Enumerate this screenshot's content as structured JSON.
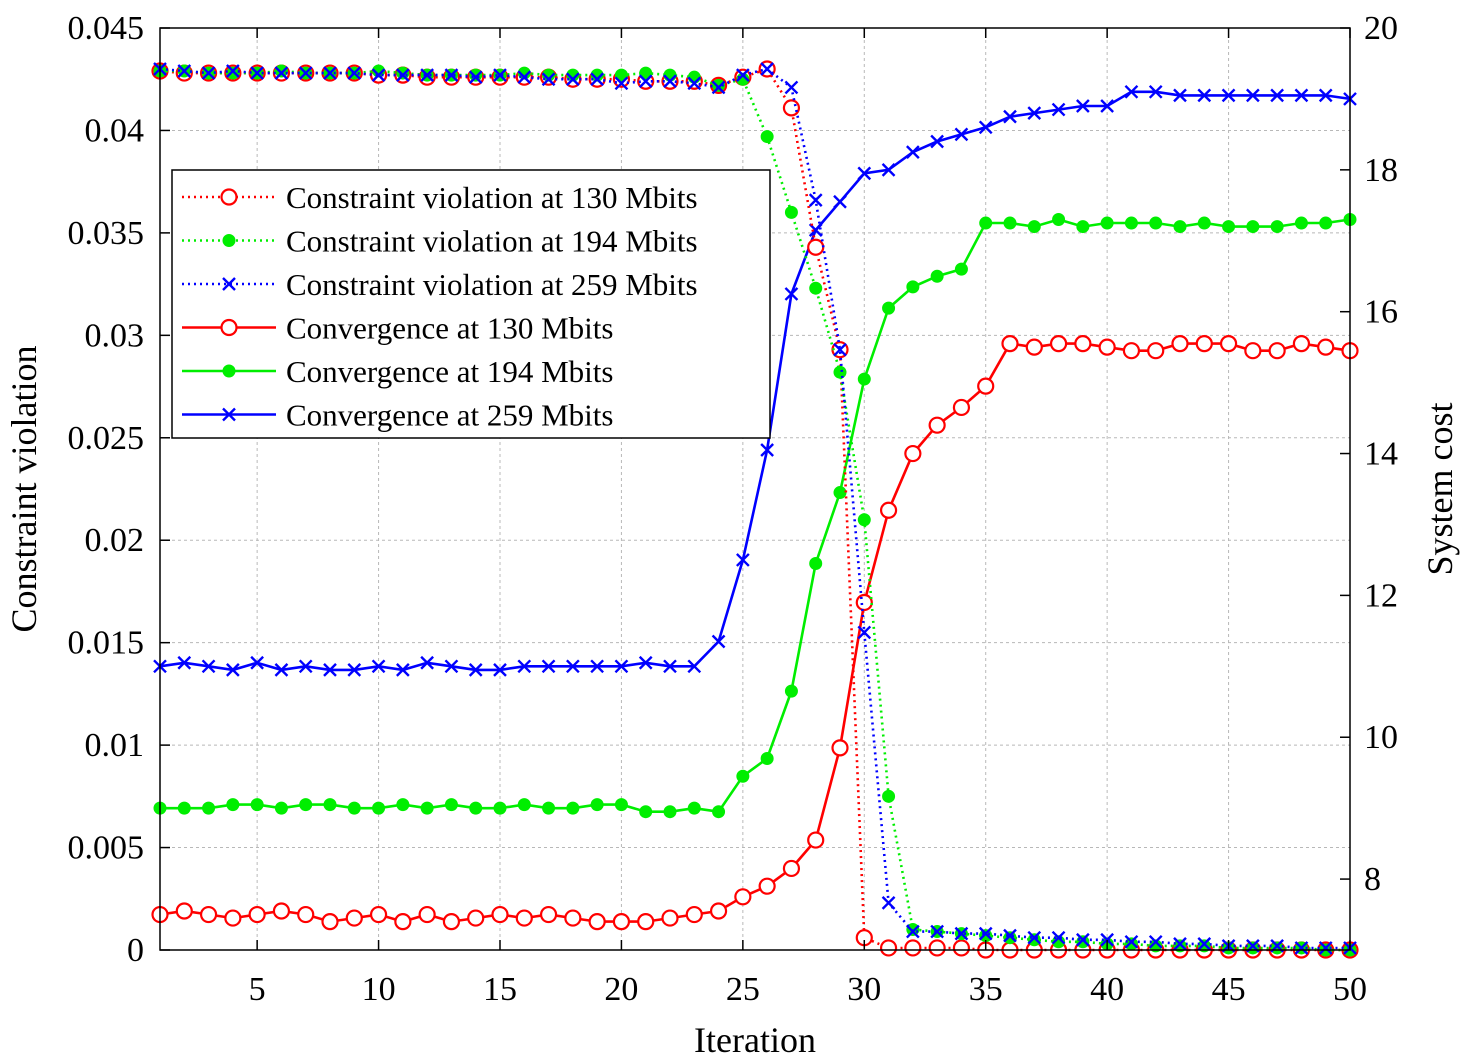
{
  "chart_data": {
    "type": "line",
    "xlabel": "Iteration",
    "ylabel_left": "Constraint violation",
    "ylabel_right": "System cost",
    "xlim": [
      1,
      50
    ],
    "ylim_left": [
      0,
      0.045
    ],
    "ylim_right": [
      7,
      20
    ],
    "x_ticks": [
      5,
      10,
      15,
      20,
      25,
      30,
      35,
      40,
      45,
      50
    ],
    "y_left_ticks": [
      0,
      0.005,
      0.01,
      0.015,
      0.02,
      0.025,
      0.03,
      0.035,
      0.04,
      0.045
    ],
    "y_left_tick_labels": [
      "0",
      "0.005",
      "0.01",
      "0.015",
      "0.02",
      "0.025",
      "0.03",
      "0.035",
      "0.04",
      "0.045"
    ],
    "y_right_ticks": [
      8,
      10,
      12,
      14,
      16,
      18,
      20
    ],
    "y_right_tick_labels": [
      "8",
      "10",
      "12",
      "14",
      "16",
      "18",
      "20"
    ],
    "grid": true,
    "legend_position": "upper-left",
    "x": [
      1,
      2,
      3,
      4,
      5,
      6,
      7,
      8,
      9,
      10,
      11,
      12,
      13,
      14,
      15,
      16,
      17,
      18,
      19,
      20,
      21,
      22,
      23,
      24,
      25,
      26,
      27,
      28,
      29,
      30,
      31,
      32,
      33,
      34,
      35,
      36,
      37,
      38,
      39,
      40,
      41,
      42,
      43,
      44,
      45,
      46,
      47,
      48,
      49,
      50
    ],
    "series": [
      {
        "name": "Constraint violation at 130 Mbits",
        "axis": "left",
        "color": "#ff0000",
        "line": "dotted",
        "marker": "circle",
        "values": [
          0.0429,
          0.0428,
          0.0428,
          0.0428,
          0.0428,
          0.0428,
          0.0428,
          0.0428,
          0.0428,
          0.0427,
          0.0427,
          0.0426,
          0.0426,
          0.0426,
          0.0426,
          0.0426,
          0.0426,
          0.0425,
          0.0425,
          0.0425,
          0.0424,
          0.0424,
          0.0424,
          0.0422,
          0.0426,
          0.043,
          0.0411,
          0.0343,
          0.0293,
          0.0006,
          0.0001,
          0.0001,
          0.0001,
          0.0001,
          0.0,
          0.0,
          0.0,
          0.0,
          0.0,
          0.0,
          0.0,
          0.0,
          0.0,
          0.0,
          0.0,
          0.0,
          0.0,
          0.0,
          0.0,
          0.0
        ]
      },
      {
        "name": "Constraint violation at 194 Mbits",
        "axis": "left",
        "color": "#00ee00",
        "line": "dotted",
        "marker": "filled-circle",
        "values": [
          0.0429,
          0.0429,
          0.0428,
          0.0428,
          0.0428,
          0.0429,
          0.0428,
          0.0428,
          0.0428,
          0.0429,
          0.0428,
          0.0427,
          0.0427,
          0.0427,
          0.0427,
          0.0428,
          0.0427,
          0.0427,
          0.0427,
          0.0427,
          0.0428,
          0.0427,
          0.0426,
          0.0422,
          0.0425,
          0.0397,
          0.036,
          0.0323,
          0.0282,
          0.021,
          0.0075,
          0.001,
          0.0009,
          0.0008,
          0.0007,
          0.0006,
          0.0005,
          0.0004,
          0.0004,
          0.0003,
          0.0003,
          0.0002,
          0.0002,
          0.0002,
          0.0001,
          0.0001,
          0.0001,
          0.0001,
          0.0,
          0.0
        ]
      },
      {
        "name": "Constraint violation at 259 Mbits",
        "axis": "left",
        "color": "#0000ff",
        "line": "dotted",
        "marker": "x",
        "values": [
          0.043,
          0.0429,
          0.0428,
          0.0429,
          0.0428,
          0.0428,
          0.0428,
          0.0428,
          0.0428,
          0.0427,
          0.0427,
          0.0427,
          0.0427,
          0.0426,
          0.0427,
          0.0426,
          0.0425,
          0.0425,
          0.0425,
          0.0423,
          0.0424,
          0.0424,
          0.0423,
          0.0421,
          0.0427,
          0.043,
          0.0421,
          0.0366,
          0.0293,
          0.0155,
          0.0023,
          0.0009,
          0.0009,
          0.0008,
          0.0008,
          0.0007,
          0.0006,
          0.0006,
          0.0005,
          0.0005,
          0.0004,
          0.0004,
          0.0003,
          0.0003,
          0.0002,
          0.0002,
          0.0002,
          0.0001,
          0.0001,
          0.0001
        ]
      },
      {
        "name": "Convergence at 130 Mbits",
        "axis": "right",
        "color": "#ff0000",
        "line": "solid",
        "marker": "circle",
        "values": [
          7.5,
          7.55,
          7.5,
          7.45,
          7.5,
          7.55,
          7.5,
          7.4,
          7.45,
          7.5,
          7.4,
          7.5,
          7.4,
          7.45,
          7.5,
          7.45,
          7.5,
          7.45,
          7.4,
          7.4,
          7.4,
          7.45,
          7.5,
          7.55,
          7.75,
          7.9,
          8.15,
          8.55,
          9.85,
          11.9,
          13.2,
          14.0,
          14.4,
          14.65,
          14.95,
          15.55,
          15.5,
          15.55,
          15.55,
          15.5,
          15.45,
          15.45,
          15.55,
          15.55,
          15.55,
          15.45,
          15.45,
          15.55,
          15.5,
          15.45
        ]
      },
      {
        "name": "Convergence at 194 Mbits",
        "axis": "right",
        "color": "#00ee00",
        "line": "solid",
        "marker": "filled-circle",
        "values": [
          9.0,
          9.0,
          9.0,
          9.05,
          9.05,
          9.0,
          9.05,
          9.05,
          9.0,
          9.0,
          9.05,
          9.0,
          9.05,
          9.0,
          9.0,
          9.05,
          9.0,
          9.0,
          9.05,
          9.05,
          8.95,
          8.95,
          9.0,
          8.95,
          9.45,
          9.7,
          10.65,
          12.45,
          13.45,
          15.05,
          16.05,
          16.35,
          16.5,
          16.6,
          17.25,
          17.25,
          17.2,
          17.3,
          17.2,
          17.25,
          17.25,
          17.25,
          17.2,
          17.25,
          17.2,
          17.2,
          17.2,
          17.25,
          17.25,
          17.3
        ]
      },
      {
        "name": "Convergence at 259 Mbits",
        "axis": "right",
        "color": "#0000ff",
        "line": "solid",
        "marker": "x",
        "values": [
          11.0,
          11.05,
          11.0,
          10.95,
          11.05,
          10.95,
          11.0,
          10.95,
          10.95,
          11.0,
          10.95,
          11.05,
          11.0,
          10.95,
          10.95,
          11.0,
          11.0,
          11.0,
          11.0,
          11.0,
          11.05,
          11.0,
          11.0,
          11.35,
          12.5,
          14.05,
          16.25,
          17.15,
          17.55,
          17.95,
          18.0,
          18.25,
          18.4,
          18.5,
          18.6,
          18.75,
          18.8,
          18.85,
          18.9,
          18.9,
          19.1,
          19.1,
          19.05,
          19.05,
          19.05,
          19.05,
          19.05,
          19.05,
          19.05,
          19.0
        ]
      }
    ]
  }
}
